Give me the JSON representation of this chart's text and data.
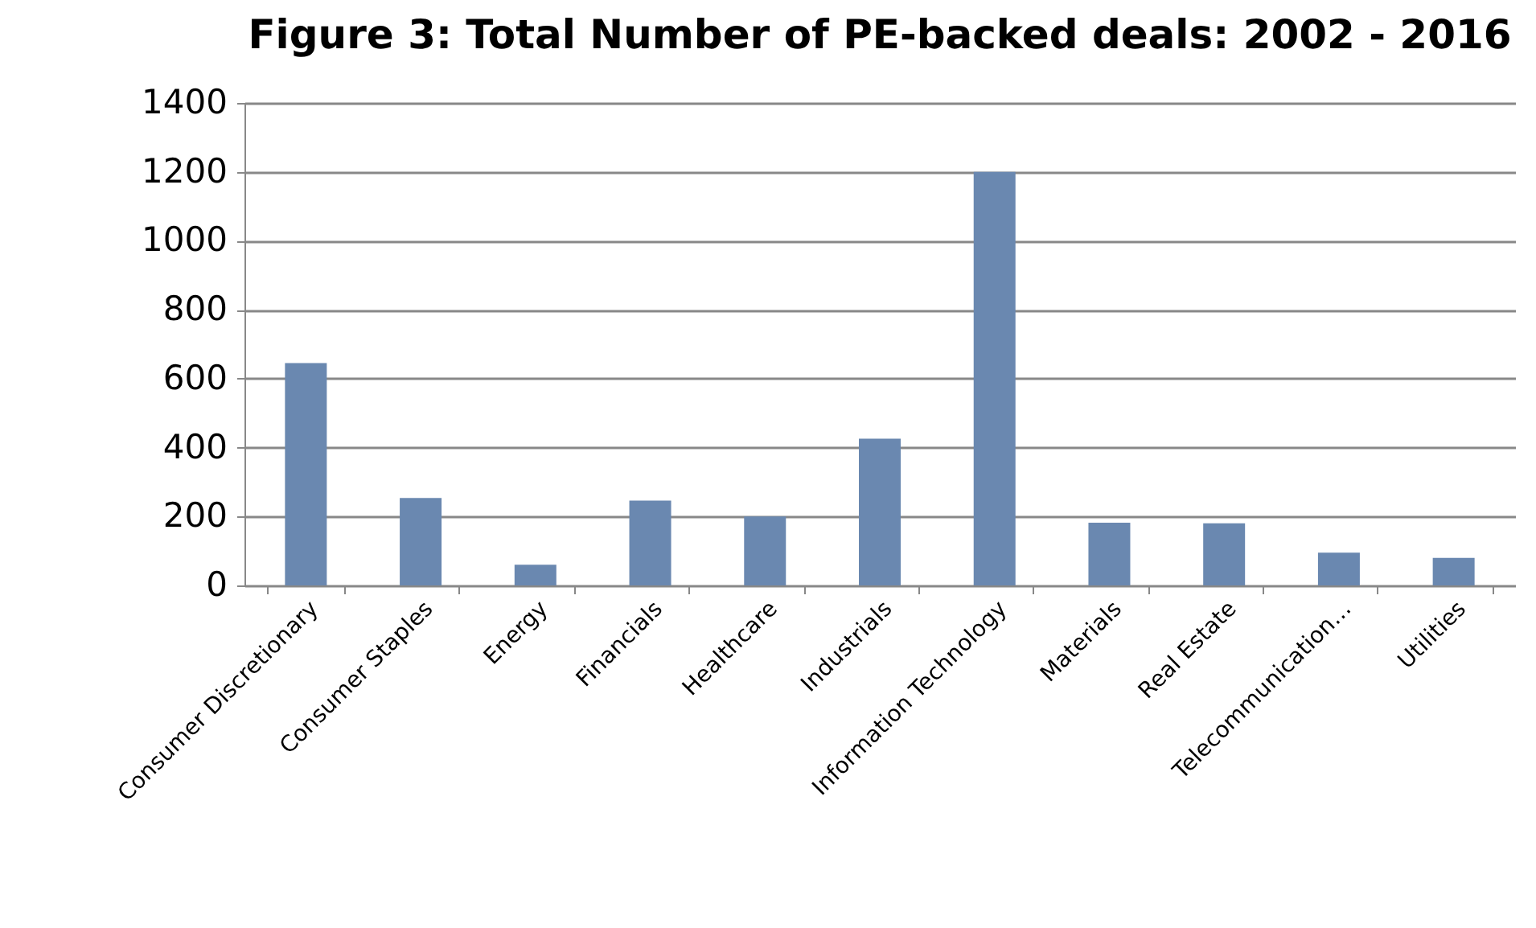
{
  "chart_data": {
    "type": "bar",
    "title": "Figure 3: Total Number of PE-backed deals: 2002 - 2016",
    "categories": [
      "Consumer Discretionary",
      "Consumer Staples",
      "Energy",
      "Financials",
      "Healthcare",
      "Industrials",
      "Information Technology",
      "Materials",
      "Real Estate",
      "Telecommunication…",
      "Utilities"
    ],
    "values": [
      645,
      254,
      60,
      246,
      200,
      426,
      1200,
      182,
      180,
      95,
      80
    ],
    "color": "#6a88b0",
    "ylim": [
      0,
      1400
    ],
    "yticks": [
      0,
      200,
      400,
      600,
      800,
      1000,
      1200,
      1400
    ],
    "grid": "y"
  }
}
